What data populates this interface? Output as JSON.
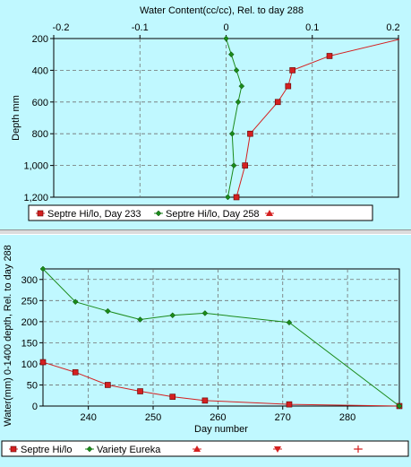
{
  "chart_data": [
    {
      "type": "line",
      "orientation": "profile",
      "title": "Water Content(cc/cc), Rel. to day 288",
      "xlabel": "Water Content(cc/cc), Rel. to day 288",
      "ylabel": "Depth mm",
      "xlim": [
        -0.2,
        0.2
      ],
      "ylim": [
        200,
        1200
      ],
      "y_inverted": true,
      "x_axis_position": "top",
      "x_ticks": [
        -0.2,
        -0.1,
        0,
        0.1,
        0.2
      ],
      "x_tick_labels": [
        "-0.2",
        "-0.1",
        "0",
        "0.1",
        "0.2"
      ],
      "y_ticks": [
        200,
        400,
        600,
        800,
        1000,
        1200
      ],
      "y_tick_labels": [
        "200",
        "400",
        "600",
        "800",
        "1,000",
        "1,200"
      ],
      "grid": true,
      "legend_position": "bottom",
      "series": [
        {
          "name": "Septre Hi/lo, Day 233",
          "color": "#d42020",
          "marker": "square",
          "points": [
            {
              "x": 0.205,
              "y": 200
            },
            {
              "x": 0.12,
              "y": 310
            },
            {
              "x": 0.077,
              "y": 400
            },
            {
              "x": 0.072,
              "y": 500
            },
            {
              "x": 0.06,
              "y": 600
            },
            {
              "x": 0.028,
              "y": 800
            },
            {
              "x": 0.022,
              "y": 1000
            },
            {
              "x": 0.012,
              "y": 1200
            }
          ]
        },
        {
          "name": "Septre Hi/lo, Day 258",
          "color": "#1a8a1a",
          "marker": "diamond",
          "points": [
            {
              "x": 0.0,
              "y": 200
            },
            {
              "x": 0.006,
              "y": 300
            },
            {
              "x": 0.012,
              "y": 400
            },
            {
              "x": 0.018,
              "y": 500
            },
            {
              "x": 0.014,
              "y": 600
            },
            {
              "x": 0.007,
              "y": 800
            },
            {
              "x": 0.009,
              "y": 1000
            },
            {
              "x": 0.002,
              "y": 1200
            }
          ]
        },
        {
          "name": "",
          "color": "#d42020",
          "marker": "triangle",
          "points": []
        }
      ]
    },
    {
      "type": "line",
      "title": "",
      "xlabel": "Day number",
      "ylabel": "Water(mm) 0-1400 depth, Rel. to day 288",
      "xlim": [
        233,
        288
      ],
      "ylim": [
        0,
        325
      ],
      "x_ticks": [
        240,
        250,
        260,
        270,
        280
      ],
      "x_tick_labels": [
        "240",
        "250",
        "260",
        "270",
        "280"
      ],
      "y_ticks": [
        0,
        50,
        100,
        150,
        200,
        250,
        300
      ],
      "y_tick_labels": [
        "0",
        "50",
        "100",
        "150",
        "200",
        "250",
        "300"
      ],
      "grid": true,
      "legend_position": "bottom",
      "series": [
        {
          "name": "Septre Hi/lo",
          "color": "#d42020",
          "marker": "square",
          "points": [
            {
              "x": 233,
              "y": 104
            },
            {
              "x": 238,
              "y": 80
            },
            {
              "x": 243,
              "y": 50
            },
            {
              "x": 248,
              "y": 35
            },
            {
              "x": 253,
              "y": 22
            },
            {
              "x": 258,
              "y": 13
            },
            {
              "x": 271,
              "y": 4
            },
            {
              "x": 288,
              "y": 0
            }
          ]
        },
        {
          "name": "Variety Eureka",
          "color": "#1a8a1a",
          "marker": "diamond",
          "points": [
            {
              "x": 233,
              "y": 325
            },
            {
              "x": 238,
              "y": 247
            },
            {
              "x": 243,
              "y": 225
            },
            {
              "x": 248,
              "y": 205
            },
            {
              "x": 253,
              "y": 215
            },
            {
              "x": 258,
              "y": 220
            },
            {
              "x": 271,
              "y": 198
            },
            {
              "x": 288,
              "y": 0
            }
          ]
        },
        {
          "name": "",
          "color": "#d42020",
          "marker": "triangle",
          "points": []
        },
        {
          "name": "",
          "color": "#d42020",
          "marker": "triangle-down",
          "points": []
        },
        {
          "name": "",
          "color": "#d42020",
          "marker": "plus",
          "points": []
        }
      ]
    }
  ]
}
